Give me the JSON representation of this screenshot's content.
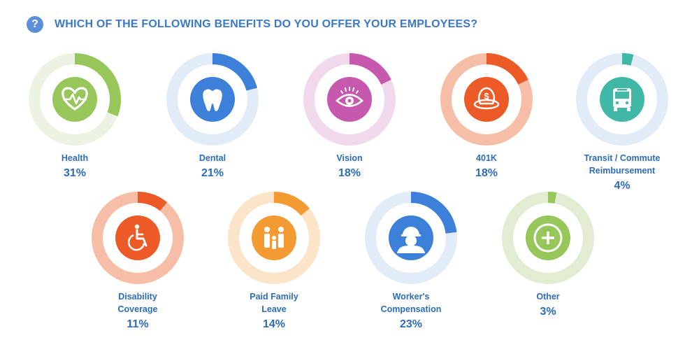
{
  "header": {
    "question_icon": "?",
    "title": "WHICH OF THE FOLLOWING BENEFITS DO YOU OFFER YOUR EMPLOYEES?"
  },
  "chart_data": {
    "type": "donut-grid",
    "title": "WHICH OF THE FOLLOWING BENEFITS DO YOU OFFER YOUR EMPLOYEES?",
    "items": [
      {
        "label_lines": [
          "Health"
        ],
        "value": 31,
        "value_label": "31%",
        "color": "#97c75b",
        "track": "#edf3e3",
        "icon": "heart-pulse-icon"
      },
      {
        "label_lines": [
          "Dental"
        ],
        "value": 21,
        "value_label": "21%",
        "color": "#3d80d9",
        "track": "#e2ecf8",
        "icon": "tooth-icon"
      },
      {
        "label_lines": [
          "Vision"
        ],
        "value": 18,
        "value_label": "18%",
        "color": "#c659ad",
        "track": "#f1d9ec",
        "icon": "eye-icon"
      },
      {
        "label_lines": [
          "401K"
        ],
        "value": 18,
        "value_label": "18%",
        "color": "#ec5b27",
        "track": "#f6bea7",
        "icon": "money-globe-icon"
      },
      {
        "label_lines": [
          "Transit / Commute",
          "Reimbursement"
        ],
        "value": 4,
        "value_label": "4%",
        "color": "#41b8a6",
        "track": "#e2ecf8",
        "icon": "bus-icon"
      },
      {
        "label_lines": [
          "Disability",
          "Coverage"
        ],
        "value": 11,
        "value_label": "11%",
        "color": "#ec5b27",
        "track": "#f6bea7",
        "icon": "wheelchair-icon"
      },
      {
        "label_lines": [
          "Paid Family",
          "Leave"
        ],
        "value": 14,
        "value_label": "14%",
        "color": "#f49a33",
        "track": "#fbe4c8",
        "icon": "family-icon"
      },
      {
        "label_lines": [
          "Worker's",
          "Compensation"
        ],
        "value": 23,
        "value_label": "23%",
        "color": "#3d80d9",
        "track": "#e2ecf8",
        "icon": "worker-icon"
      },
      {
        "label_lines": [
          "Other"
        ],
        "value": 3,
        "value_label": "3%",
        "color": "#97c75b",
        "track": "#e1ecd3",
        "icon": "plus-icon"
      }
    ]
  }
}
